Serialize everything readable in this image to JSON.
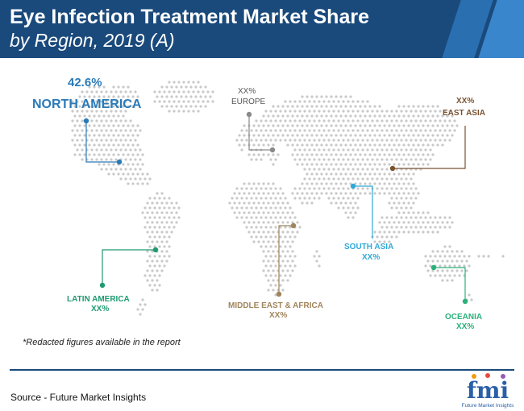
{
  "header": {
    "title": "Eye Infection Treatment Market Share",
    "subtitle": "by Region, 2019 (A)"
  },
  "regions": {
    "north_america": {
      "name": "NORTH AMERICA",
      "value": "42.6%",
      "color": "#2a7ab8"
    },
    "europe": {
      "name": "EUROPE",
      "value": "XX%",
      "color": "#8a8a8a"
    },
    "east_asia": {
      "name": "EAST ASIA",
      "value": "XX%",
      "color": "#7a5230"
    },
    "south_asia": {
      "name": "SOUTH ASIA",
      "value": "XX%",
      "color": "#2fa8d8"
    },
    "latin_america": {
      "name": "LATIN AMERICA",
      "value": "XX%",
      "color": "#1e9b72"
    },
    "middle_east_africa": {
      "name": "MIDDLE EAST & AFRICA",
      "value": "XX%",
      "color": "#a0845c"
    },
    "oceania": {
      "name": "OCEANIA",
      "value": "XX%",
      "color": "#2bb07a"
    }
  },
  "note": "*Redacted figures available in the report",
  "source": "Source - Future Market Insights",
  "logo": {
    "text": "fmi",
    "caption": "Future Market Insights"
  }
}
